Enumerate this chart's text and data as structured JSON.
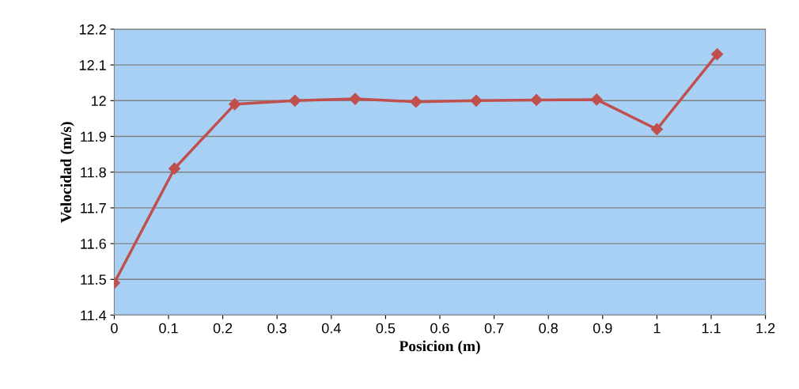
{
  "chart_data": {
    "type": "line",
    "xlabel": "Posicion (m)",
    "ylabel": "Velocidad (m/s)",
    "x": [
      0,
      0.111,
      0.222,
      0.333,
      0.444,
      0.556,
      0.667,
      0.778,
      0.889,
      1.0,
      1.111
    ],
    "series": [
      {
        "color": "#c0504d",
        "values": [
          11.49,
          11.81,
          11.99,
          12.0,
          12.005,
          11.997,
          12.0,
          12.002,
          12.003,
          11.92,
          12.13
        ]
      }
    ],
    "xlim": [
      0,
      1.2
    ],
    "xticks": [
      0,
      0.1,
      0.2,
      0.3,
      0.4,
      0.5,
      0.6,
      0.7,
      0.8,
      0.9,
      1,
      1.1,
      1.2
    ],
    "ylim": [
      11.4,
      12.2
    ],
    "yticks": [
      11.4,
      11.5,
      11.6,
      11.7,
      11.8,
      11.9,
      12,
      12.1,
      12.2
    ],
    "grid": "y",
    "marker": "diamond",
    "line_style": "solid"
  }
}
